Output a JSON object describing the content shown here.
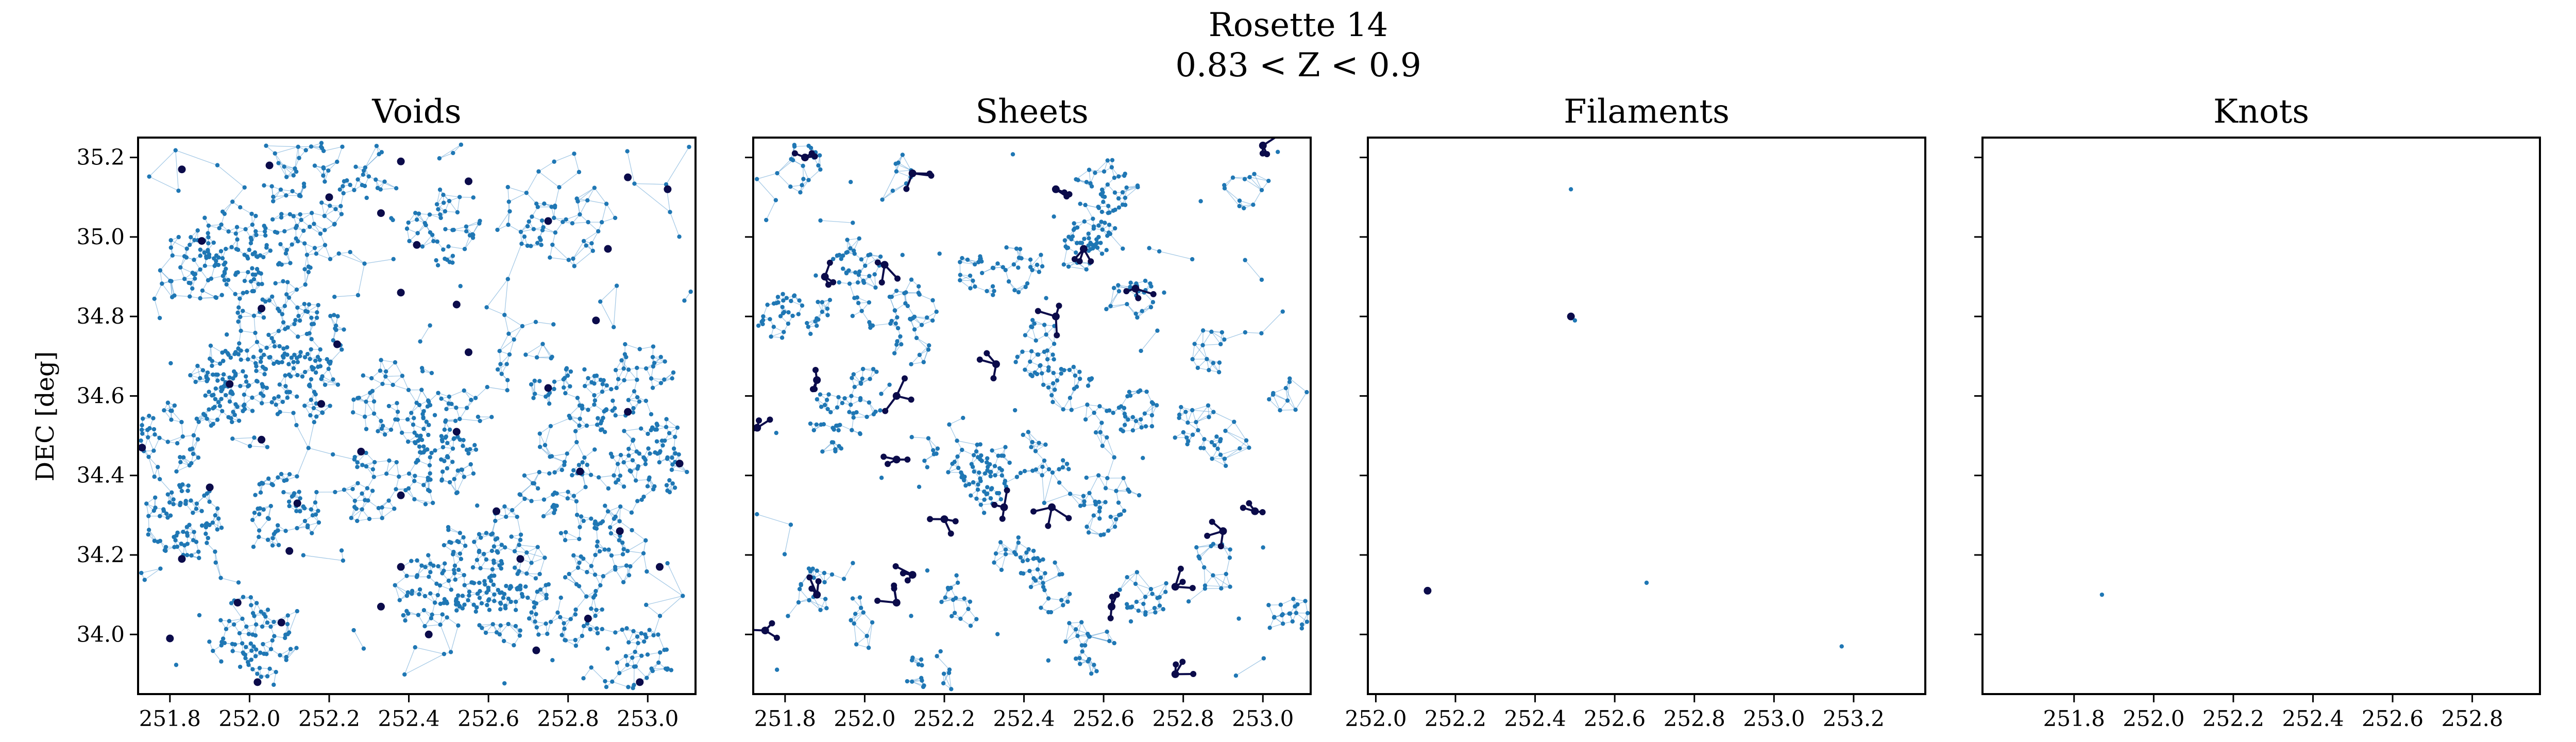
{
  "figure": {
    "title_line1": "Rosette 14",
    "title_line2": "0.83 < Z < 0.9",
    "ylabel": "DEC [deg]"
  },
  "colors": {
    "point": "#1f77b4",
    "edge": "#6aa6d6",
    "highlight": "#0b0b4a"
  },
  "chart_data": [
    {
      "type": "scatter",
      "title": "Voids",
      "xlim": [
        251.72,
        253.12
      ],
      "ylim": [
        33.85,
        35.25
      ],
      "xticks": [
        "251.8",
        "252.0",
        "252.2",
        "252.4",
        "252.6",
        "252.8",
        "253.0"
      ],
      "yticks": [
        "34.0",
        "34.2",
        "34.4",
        "34.6",
        "34.8",
        "35.0",
        "35.2"
      ],
      "density": "dense",
      "highlights": [
        [
          251.83,
          35.17
        ],
        [
          252.05,
          35.18
        ],
        [
          252.38,
          35.19
        ],
        [
          252.55,
          35.14
        ],
        [
          252.95,
          35.15
        ],
        [
          253.05,
          35.12
        ],
        [
          252.2,
          35.1
        ],
        [
          252.33,
          35.06
        ],
        [
          252.75,
          35.04
        ],
        [
          251.88,
          34.99
        ],
        [
          252.9,
          34.97
        ],
        [
          252.42,
          34.98
        ],
        [
          252.03,
          34.82
        ],
        [
          252.38,
          34.86
        ],
        [
          252.52,
          34.83
        ],
        [
          252.87,
          34.79
        ],
        [
          252.22,
          34.73
        ],
        [
          252.55,
          34.71
        ],
        [
          251.95,
          34.63
        ],
        [
          252.18,
          34.58
        ],
        [
          252.75,
          34.62
        ],
        [
          252.95,
          34.56
        ],
        [
          252.03,
          34.49
        ],
        [
          252.28,
          34.46
        ],
        [
          252.52,
          34.51
        ],
        [
          251.73,
          34.47
        ],
        [
          252.83,
          34.41
        ],
        [
          253.08,
          34.43
        ],
        [
          251.9,
          34.37
        ],
        [
          252.12,
          34.33
        ],
        [
          252.38,
          34.35
        ],
        [
          252.62,
          34.31
        ],
        [
          252.93,
          34.26
        ],
        [
          251.83,
          34.19
        ],
        [
          252.1,
          34.21
        ],
        [
          252.38,
          34.17
        ],
        [
          252.68,
          34.19
        ],
        [
          253.03,
          34.17
        ],
        [
          251.97,
          34.08
        ],
        [
          252.33,
          34.07
        ],
        [
          252.85,
          34.04
        ],
        [
          252.08,
          34.03
        ],
        [
          251.8,
          33.99
        ],
        [
          252.45,
          34.0
        ],
        [
          252.72,
          33.96
        ],
        [
          252.02,
          33.88
        ],
        [
          252.98,
          33.88
        ]
      ]
    },
    {
      "type": "scatter",
      "title": "Sheets",
      "xlim": [
        251.72,
        253.12
      ],
      "ylim": [
        33.85,
        35.25
      ],
      "xticks": [
        "251.8",
        "252.0",
        "252.2",
        "252.4",
        "252.6",
        "252.8",
        "253.0"
      ],
      "yticks": [],
      "density": "medium",
      "highlights": [
        [
          251.85,
          35.2
        ],
        [
          252.12,
          35.16
        ],
        [
          252.48,
          35.12
        ],
        [
          251.9,
          34.9
        ],
        [
          252.05,
          34.93
        ],
        [
          252.55,
          34.97
        ],
        [
          252.68,
          34.87
        ],
        [
          252.48,
          34.8
        ],
        [
          252.33,
          34.68
        ],
        [
          251.88,
          34.64
        ],
        [
          252.08,
          34.6
        ],
        [
          251.73,
          34.52
        ],
        [
          252.08,
          34.44
        ],
        [
          252.47,
          34.32
        ],
        [
          252.2,
          34.29
        ],
        [
          252.35,
          34.32
        ],
        [
          252.12,
          34.15
        ],
        [
          252.9,
          34.26
        ],
        [
          252.98,
          34.31
        ],
        [
          251.88,
          34.1
        ],
        [
          252.08,
          34.08
        ],
        [
          252.62,
          34.07
        ],
        [
          252.78,
          34.12
        ],
        [
          252.78,
          33.9
        ],
        [
          251.75,
          34.01
        ],
        [
          253.0,
          35.23
        ]
      ]
    },
    {
      "type": "scatter",
      "title": "Filaments",
      "xlim": [
        251.98,
        253.38
      ],
      "ylim": [
        33.85,
        35.25
      ],
      "xticks": [
        "252.0",
        "252.2",
        "252.4",
        "252.6",
        "252.8",
        "253.0",
        "253.2"
      ],
      "yticks": [],
      "density": "sparse",
      "highlights": [
        [
          252.13,
          34.11
        ],
        [
          252.49,
          34.8
        ]
      ],
      "points": [
        [
          252.49,
          35.12
        ],
        [
          252.5,
          34.79
        ],
        [
          252.68,
          34.13
        ],
        [
          253.17,
          33.97
        ]
      ]
    },
    {
      "type": "scatter",
      "title": "Knots",
      "xlim": [
        251.57,
        252.97
      ],
      "ylim": [
        33.85,
        35.25
      ],
      "xticks": [
        "251.8",
        "252.0",
        "252.2",
        "252.4",
        "252.6",
        "252.8",
        "253.0"
      ],
      "yticks": [],
      "density": "sparse",
      "highlights": [],
      "points": [
        [
          251.87,
          34.1
        ]
      ]
    }
  ]
}
